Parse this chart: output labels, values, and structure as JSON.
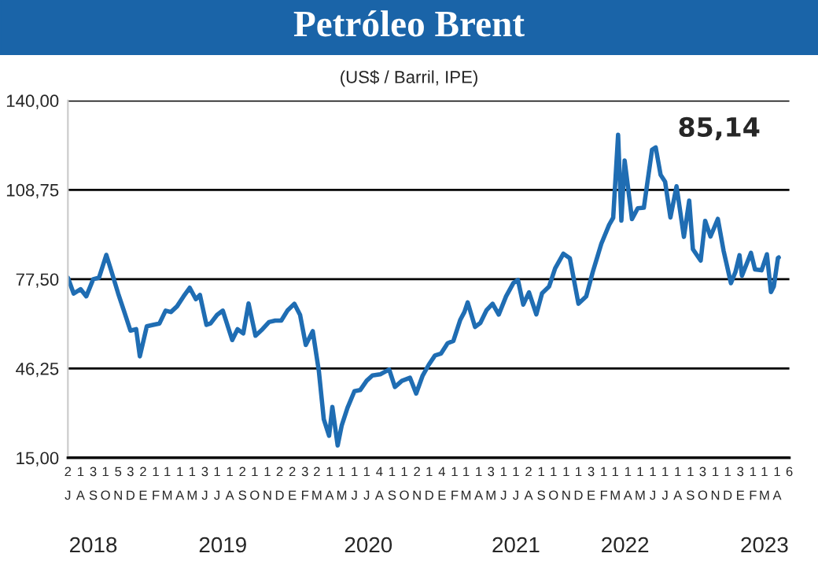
{
  "chart_data": {
    "type": "line",
    "title": "Petróleo Brent",
    "subtitle": "(US$ / Barril, IPE)",
    "annotations": [
      "85,14"
    ],
    "x": [
      "2018-07-01",
      "2018-07-15",
      "2018-08-01",
      "2018-08-15",
      "2018-09-01",
      "2018-09-15",
      "2018-10-03",
      "2018-10-15",
      "2018-11-01",
      "2018-11-15",
      "2018-12-01",
      "2018-12-15",
      "2018-12-24",
      "2019-01-10",
      "2019-01-25",
      "2019-02-10",
      "2019-02-25",
      "2019-03-10",
      "2019-03-25",
      "2019-04-10",
      "2019-04-25",
      "2019-05-10",
      "2019-05-20",
      "2019-06-05",
      "2019-06-15",
      "2019-07-01",
      "2019-07-15",
      "2019-08-07",
      "2019-08-20",
      "2019-09-03",
      "2019-09-16",
      "2019-10-03",
      "2019-10-20",
      "2019-11-05",
      "2019-11-20",
      "2019-12-05",
      "2019-12-20",
      "2020-01-06",
      "2020-01-20",
      "2020-02-03",
      "2020-02-20",
      "2020-03-06",
      "2020-03-18",
      "2020-03-31",
      "2020-04-08",
      "2020-04-21",
      "2020-05-01",
      "2020-05-15",
      "2020-06-01",
      "2020-06-15",
      "2020-07-01",
      "2020-07-15",
      "2020-08-03",
      "2020-08-25",
      "2020-09-08",
      "2020-09-25",
      "2020-10-15",
      "2020-10-30",
      "2020-11-15",
      "2020-11-30",
      "2020-12-15",
      "2020-12-30",
      "2021-01-15",
      "2021-01-29",
      "2021-02-15",
      "2021-02-25",
      "2021-03-05",
      "2021-03-23",
      "2021-04-05",
      "2021-04-20",
      "2021-05-05",
      "2021-05-20",
      "2021-06-07",
      "2021-06-25",
      "2021-07-06",
      "2021-07-19",
      "2021-08-02",
      "2021-08-20",
      "2021-09-03",
      "2021-09-20",
      "2021-10-05",
      "2021-10-25",
      "2021-11-10",
      "2021-11-26",
      "2021-12-01",
      "2021-12-20",
      "2022-01-05",
      "2022-01-26",
      "2022-02-14",
      "2022-02-24",
      "2022-03-08",
      "2022-03-16",
      "2022-03-24",
      "2022-04-11",
      "2022-04-25",
      "2022-05-10",
      "2022-05-30",
      "2022-06-08",
      "2022-06-20",
      "2022-07-01",
      "2022-07-14",
      "2022-07-29",
      "2022-08-16",
      "2022-08-29",
      "2022-09-07",
      "2022-09-26",
      "2022-10-07",
      "2022-10-20",
      "2022-11-07",
      "2022-11-21",
      "2022-12-09",
      "2022-12-20",
      "2022-12-30",
      "2023-01-05",
      "2023-01-27",
      "2023-02-06",
      "2023-02-22",
      "2023-03-07",
      "2023-03-17",
      "2023-03-24",
      "2023-04-03",
      "2023-04-05"
    ],
    "series": [
      {
        "color": "#1f6db3",
        "values": [
          78.0,
          72.5,
          74,
          71.5,
          77.5,
          78,
          86,
          80.5,
          72.5,
          66.5,
          59.5,
          60,
          50.5,
          61,
          61.5,
          62,
          66.5,
          66,
          68,
          71.5,
          74.5,
          70.5,
          72,
          61.5,
          62,
          65,
          66.5,
          56.2,
          60,
          58.5,
          69,
          57.7,
          60,
          62.5,
          63,
          63,
          66.5,
          68.9,
          65,
          54.5,
          59.3,
          45.3,
          28.5,
          22.7,
          32.8,
          19.3,
          26.4,
          32.5,
          38.3,
          38.7,
          42,
          43.8,
          44.2,
          45.9,
          39.8,
          41.9,
          43,
          37.5,
          43.8,
          47.6,
          50.8,
          51.5,
          55.1,
          55.9,
          63.3,
          66,
          69.4,
          60.8,
          62.2,
          66.6,
          68.9,
          65.1,
          71.5,
          76.2,
          77.2,
          68.6,
          72.9,
          65.2,
          72.6,
          74.9,
          81.3,
          86.4,
          84.8,
          72.7,
          68.9,
          71.5,
          80,
          89.9,
          96.5,
          99,
          128,
          98,
          119,
          98.5,
          102.3,
          102.5,
          122.8,
          123.6,
          114,
          111.6,
          99.1,
          110,
          92.3,
          105,
          88,
          84,
          97.9,
          92.4,
          98.6,
          87.5,
          76.1,
          80,
          85.9,
          78.7,
          86.7,
          80.9,
          80.6,
          86.2,
          73,
          75,
          84.9,
          85.1
        ]
      }
    ],
    "ylim": [
      15,
      140
    ],
    "yticks": [
      {
        "value": 15,
        "label": "15,00"
      },
      {
        "value": 46.25,
        "label": "46,25"
      },
      {
        "value": 77.5,
        "label": "77,50"
      },
      {
        "value": 108.75,
        "label": "108,75"
      },
      {
        "value": 140,
        "label": "140,00"
      }
    ],
    "xlim": [
      "2018-07-01",
      "2023-05-01"
    ],
    "xticks": [
      {
        "value": "2018-07-01",
        "label": "2\nJ"
      },
      {
        "value": "2018-08-01",
        "label": "1\nA"
      },
      {
        "value": "2018-09-01",
        "label": "3\nS"
      },
      {
        "value": "2018-10-01",
        "label": "1\nO"
      },
      {
        "value": "2018-11-01",
        "label": "5\nN"
      },
      {
        "value": "2018-12-01",
        "label": "3\nD"
      },
      {
        "value": "2019-01-01",
        "label": "2\nE"
      },
      {
        "value": "2019-02-01",
        "label": "1\nF"
      },
      {
        "value": "2019-03-01",
        "label": "1\nM"
      },
      {
        "value": "2019-04-01",
        "label": "1\nA"
      },
      {
        "value": "2019-05-01",
        "label": "1\nM"
      },
      {
        "value": "2019-06-01",
        "label": "3\nJ"
      },
      {
        "value": "2019-07-01",
        "label": "1\nJ"
      },
      {
        "value": "2019-08-01",
        "label": "1\nA"
      },
      {
        "value": "2019-09-01",
        "label": "2\nS"
      },
      {
        "value": "2019-10-01",
        "label": "1\nO"
      },
      {
        "value": "2019-11-01",
        "label": "1\nN"
      },
      {
        "value": "2019-12-01",
        "label": "2\nD"
      },
      {
        "value": "2020-01-01",
        "label": "2\nE"
      },
      {
        "value": "2020-02-01",
        "label": "3\nF"
      },
      {
        "value": "2020-03-01",
        "label": "2\nM"
      },
      {
        "value": "2020-04-01",
        "label": "1\nA"
      },
      {
        "value": "2020-05-01",
        "label": "1\nM"
      },
      {
        "value": "2020-06-01",
        "label": "1\nJ"
      },
      {
        "value": "2020-07-01",
        "label": "1\nJ"
      },
      {
        "value": "2020-08-01",
        "label": "4\nA"
      },
      {
        "value": "2020-09-01",
        "label": "1\nS"
      },
      {
        "value": "2020-10-01",
        "label": "1\nO"
      },
      {
        "value": "2020-11-01",
        "label": "2\nN"
      },
      {
        "value": "2020-12-01",
        "label": "1\nD"
      },
      {
        "value": "2021-01-01",
        "label": "4\nE"
      },
      {
        "value": "2021-02-01",
        "label": "1\nF"
      },
      {
        "value": "2021-03-01",
        "label": "1\nM"
      },
      {
        "value": "2021-04-01",
        "label": "1\nA"
      },
      {
        "value": "2021-05-01",
        "label": "3\nM"
      },
      {
        "value": "2021-06-01",
        "label": "1\nJ"
      },
      {
        "value": "2021-07-01",
        "label": "1\nJ"
      },
      {
        "value": "2021-08-01",
        "label": "2\nA"
      },
      {
        "value": "2021-09-01",
        "label": "1\nS"
      },
      {
        "value": "2021-10-01",
        "label": "1\nO"
      },
      {
        "value": "2021-11-01",
        "label": "1\nN"
      },
      {
        "value": "2021-12-01",
        "label": "1\nD"
      },
      {
        "value": "2022-01-01",
        "label": "3\nE"
      },
      {
        "value": "2022-02-01",
        "label": "1\nF"
      },
      {
        "value": "2022-03-01",
        "label": "1\nM"
      },
      {
        "value": "2022-04-01",
        "label": "1\nA"
      },
      {
        "value": "2022-05-01",
        "label": "1\nM"
      },
      {
        "value": "2022-06-01",
        "label": "1\nJ"
      },
      {
        "value": "2022-07-01",
        "label": "1\nJ"
      },
      {
        "value": "2022-08-01",
        "label": "1\nA"
      },
      {
        "value": "2022-09-01",
        "label": "1\nS"
      },
      {
        "value": "2022-10-01",
        "label": "3\nO"
      },
      {
        "value": "2022-11-01",
        "label": "1\nN"
      },
      {
        "value": "2022-12-01",
        "label": "1\nD"
      },
      {
        "value": "2023-01-01",
        "label": "3\nE"
      },
      {
        "value": "2023-02-01",
        "label": "1\nF"
      },
      {
        "value": "2023-03-01",
        "label": "1\nM"
      },
      {
        "value": "2023-04-01",
        "label": "1\nA"
      },
      {
        "value": "2023-05-01",
        "label": "6"
      }
    ],
    "x2lim": [
      "2018-07-01",
      "2023-05-01"
    ],
    "x2ticks": [
      {
        "value": "2018-09-01",
        "label": "2018"
      },
      {
        "value": "2019-07-15",
        "label": "2019"
      },
      {
        "value": "2020-07-05",
        "label": "2020"
      },
      {
        "value": "2021-07-01",
        "label": "2021"
      },
      {
        "value": "2022-03-25",
        "label": "2022"
      },
      {
        "value": "2023-03-01",
        "label": "2023"
      }
    ],
    "grid": "y",
    "legend": false,
    "marker": "none",
    "line_style": "solid"
  }
}
